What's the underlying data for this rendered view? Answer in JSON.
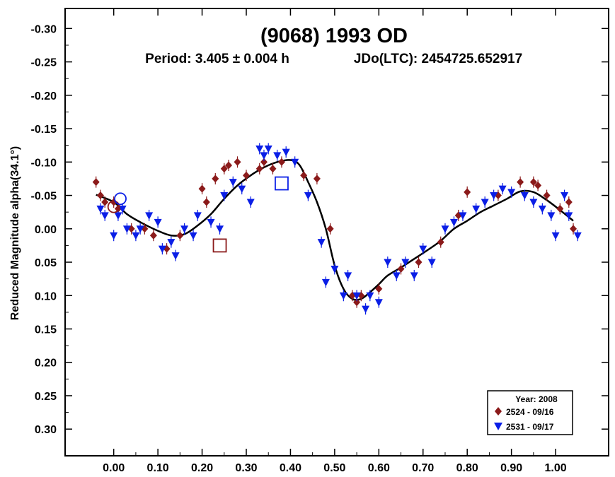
{
  "chart_data": {
    "type": "scatter",
    "title": "(9068) 1993 OD",
    "subtitle_period": "Period: 3.405 ± 0.004 h",
    "subtitle_epoch": "JDo(LTC): 2454725.652917",
    "xlabel": "",
    "ylabel": "Reduced Magnitude alpha(34.1°)",
    "xlim": [
      -0.11,
      1.12
    ],
    "ylim": [
      -0.33,
      0.34
    ],
    "y_inverted": true,
    "grid": false,
    "x_ticks": [
      0.0,
      0.1,
      0.2,
      0.3,
      0.4,
      0.5,
      0.6,
      0.7,
      0.8,
      0.9,
      1.0
    ],
    "x_tick_labels": [
      "0.00",
      "0.10",
      "0.20",
      "0.30",
      "0.40",
      "0.50",
      "0.60",
      "0.70",
      "0.80",
      "0.90",
      "1.00"
    ],
    "y_ticks": [
      -0.3,
      -0.25,
      -0.2,
      -0.15,
      -0.1,
      -0.05,
      0.0,
      0.05,
      0.1,
      0.15,
      0.2,
      0.25,
      0.3
    ],
    "y_tick_labels": [
      "-0.30",
      "-0.25",
      "-0.20",
      "-0.15",
      "-0.10",
      "-0.05",
      "0.00",
      "0.05",
      "0.10",
      "0.15",
      "0.20",
      "0.25",
      "0.30"
    ],
    "legend": {
      "title": "Year: 2008",
      "placement": "bottom-right",
      "entries": [
        "2524 - 09/16",
        "2531 - 09/17"
      ]
    },
    "colors": {
      "series1": "#8b1a1a",
      "series2": "#0a1ee6",
      "fit": "#000000"
    },
    "series": [
      {
        "name": "2524 - 09/16",
        "marker": "diamond",
        "x": [
          -0.04,
          -0.03,
          -0.02,
          0.0,
          0.01,
          0.04,
          0.07,
          0.09,
          0.12,
          0.15,
          0.2,
          0.21,
          0.23,
          0.25,
          0.26,
          0.28,
          0.3,
          0.33,
          0.34,
          0.36,
          0.38,
          0.43,
          0.46,
          0.49,
          0.54,
          0.55,
          0.56,
          0.6,
          0.65,
          0.69,
          0.74,
          0.78,
          0.8,
          0.87,
          0.92,
          0.95,
          0.96,
          0.98,
          1.01,
          1.03,
          1.04
        ],
        "y": [
          -0.07,
          -0.05,
          -0.04,
          -0.04,
          -0.03,
          0.0,
          0.0,
          0.01,
          0.03,
          0.01,
          -0.06,
          -0.04,
          -0.075,
          -0.09,
          -0.095,
          -0.1,
          -0.08,
          -0.09,
          -0.1,
          -0.09,
          -0.1,
          -0.08,
          -0.075,
          0.0,
          0.1,
          0.11,
          0.1,
          0.09,
          0.06,
          0.05,
          0.02,
          -0.02,
          -0.055,
          -0.05,
          -0.07,
          -0.07,
          -0.065,
          -0.05,
          -0.03,
          -0.04,
          0.0
        ]
      },
      {
        "name": "2531 - 09/17",
        "marker": "triangle-down",
        "x": [
          -0.03,
          -0.02,
          0.0,
          0.01,
          0.02,
          0.03,
          0.05,
          0.06,
          0.08,
          0.1,
          0.11,
          0.13,
          0.14,
          0.16,
          0.18,
          0.19,
          0.22,
          0.24,
          0.25,
          0.27,
          0.29,
          0.31,
          0.33,
          0.34,
          0.35,
          0.37,
          0.39,
          0.41,
          0.44,
          0.47,
          0.48,
          0.5,
          0.52,
          0.53,
          0.55,
          0.57,
          0.58,
          0.6,
          0.62,
          0.64,
          0.66,
          0.68,
          0.7,
          0.72,
          0.75,
          0.77,
          0.79,
          0.82,
          0.84,
          0.86,
          0.88,
          0.9,
          0.93,
          0.95,
          0.97,
          0.99,
          1.0,
          1.02,
          1.03,
          1.05
        ],
        "y": [
          -0.03,
          -0.02,
          0.01,
          -0.02,
          -0.03,
          0.0,
          0.01,
          0.0,
          -0.02,
          -0.01,
          0.03,
          0.02,
          0.04,
          0.0,
          0.01,
          -0.02,
          -0.01,
          0.0,
          -0.05,
          -0.07,
          -0.06,
          -0.04,
          -0.12,
          -0.11,
          -0.12,
          -0.11,
          -0.115,
          -0.1,
          -0.05,
          0.02,
          0.08,
          0.06,
          0.1,
          0.07,
          0.1,
          0.12,
          0.1,
          0.11,
          0.05,
          0.07,
          0.05,
          0.07,
          0.03,
          0.05,
          0.0,
          -0.01,
          -0.02,
          -0.03,
          -0.04,
          -0.05,
          -0.06,
          -0.055,
          -0.05,
          -0.04,
          -0.03,
          -0.02,
          0.01,
          -0.05,
          -0.02,
          0.01
        ]
      }
    ],
    "fit_curve": {
      "x": [
        -0.04,
        0.0,
        0.03,
        0.06,
        0.1,
        0.13,
        0.16,
        0.19,
        0.22,
        0.25,
        0.28,
        0.31,
        0.34,
        0.37,
        0.4,
        0.42,
        0.44,
        0.46,
        0.48,
        0.5,
        0.52,
        0.54,
        0.56,
        0.58,
        0.6,
        0.62,
        0.65,
        0.68,
        0.71,
        0.74,
        0.77,
        0.8,
        0.83,
        0.86,
        0.89,
        0.92,
        0.95,
        0.98,
        1.01,
        1.04
      ],
      "y": [
        -0.051,
        -0.04,
        -0.022,
        -0.01,
        0.003,
        0.01,
        0.008,
        -0.005,
        -0.022,
        -0.045,
        -0.065,
        -0.08,
        -0.092,
        -0.1,
        -0.103,
        -0.096,
        -0.07,
        -0.04,
        0.0,
        0.055,
        0.09,
        0.105,
        0.105,
        0.095,
        0.083,
        0.07,
        0.058,
        0.045,
        0.032,
        0.018,
        0.0,
        -0.012,
        -0.025,
        -0.035,
        -0.045,
        -0.056,
        -0.055,
        -0.043,
        -0.028,
        -0.012
      ]
    },
    "phase0_markers": [
      {
        "series": "2524 - 09/16",
        "x": 0.24,
        "y": 0.025
      },
      {
        "series": "2531 - 09/17",
        "x": 0.38,
        "y": -0.068
      }
    ]
  }
}
